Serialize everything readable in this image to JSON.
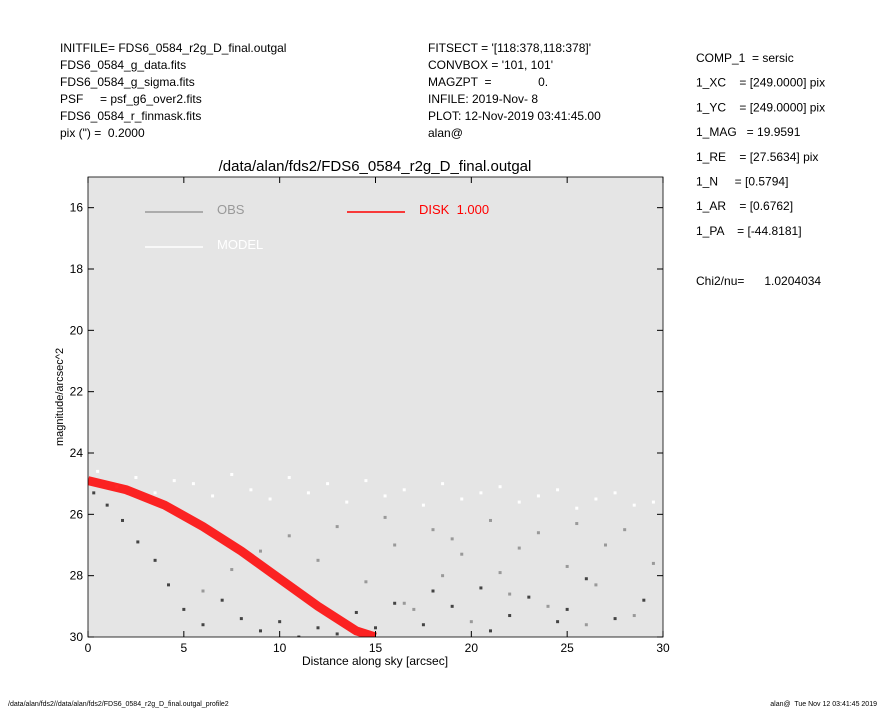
{
  "header_left": [
    "INITFILE= FDS6_0584_r2g_D_final.outgal",
    "FDS6_0584_g_data.fits",
    "FDS6_0584_g_sigma.fits",
    "PSF     = psf_g6_over2.fits",
    "FDS6_0584_r_finmask.fits",
    "pix (\") =  0.2000"
  ],
  "header_mid": [
    "FITSECT = '[118:378,118:378]'",
    "CONVBOX = '101, 101'",
    "MAGZPT  =              0.",
    "INFILE: 2019-Nov- 8",
    "PLOT: 12-Nov-2019 03:41:45.00",
    "alan@"
  ],
  "header_right": [
    "COMP_1  = sersic",
    "1_XC    = [249.0000] pix",
    "1_YC    = [249.0000] pix",
    "1_MAG   = 19.9591",
    "1_RE    = [27.5634] pix",
    "1_N     = [0.5794]",
    "1_AR    = [0.6762]",
    "1_PA    = [-44.8181]"
  ],
  "chi2": "Chi2/nu=      1.0204034",
  "footer_left": "/data/alan/fds2//data/alan/fds2/FDS6_0584_r2g_D_final.outgal_profile2",
  "footer_right": "alan@  Tue Nov 12 03:41:45 2019",
  "chart_data": {
    "type": "scatter",
    "title": "/data/alan/fds2/FDS6_0584_r2g_D_final.outgal",
    "xlabel": "Distance along sky [arcsec]",
    "ylabel": "magnitude/arcsec^2",
    "xlim": [
      0,
      30
    ],
    "xticks": [
      0,
      5,
      10,
      15,
      20,
      25,
      30
    ],
    "ylim": [
      30,
      15
    ],
    "yticks": [
      16,
      18,
      20,
      22,
      24,
      26,
      28,
      30
    ],
    "background": "#e5e5e5",
    "series": [
      {
        "name": "OBS",
        "color": "#999999",
        "mode": "points",
        "x": [
          6,
          7.5,
          9,
          10.5,
          12,
          13,
          14.5,
          15.5,
          16,
          17,
          18,
          18.5,
          19.5,
          20,
          21,
          22,
          22.5,
          23.5,
          24,
          25,
          25.5,
          26.5,
          27,
          28,
          28.5,
          29.5,
          16.5,
          19,
          21.5,
          26
        ],
        "values": [
          28.5,
          27.8,
          27.2,
          26.7,
          27.5,
          26.4,
          28.2,
          26.1,
          27.0,
          29.1,
          26.5,
          28.0,
          27.3,
          29.5,
          26.2,
          28.6,
          27.1,
          26.6,
          29.0,
          27.7,
          26.3,
          28.3,
          27.0,
          26.5,
          29.3,
          27.6,
          28.9,
          26.8,
          27.9,
          29.6
        ]
      },
      {
        "name": "MODEL",
        "color": "#ffffff",
        "mode": "points",
        "x": [
          0.5,
          1.5,
          2.5,
          3.5,
          4.5,
          5.5,
          6.5,
          7.5,
          8.5,
          9.5,
          10.5,
          11.5,
          12.5,
          13.5,
          14.5,
          15.5,
          16.5,
          17.5,
          18.5,
          19.5,
          20.5,
          21.5,
          22.5,
          23.5,
          24.5,
          25.5,
          26.5,
          27.5,
          28.5,
          29.5
        ],
        "values": [
          24.6,
          25.1,
          24.8,
          25.3,
          24.9,
          25.0,
          25.4,
          24.7,
          25.2,
          25.5,
          24.8,
          25.3,
          25.0,
          25.6,
          24.9,
          25.4,
          25.2,
          25.7,
          25.0,
          25.5,
          25.3,
          25.1,
          25.6,
          25.4,
          25.2,
          25.8,
          25.5,
          25.3,
          25.7,
          25.6
        ]
      },
      {
        "color": "#444444",
        "mode": "points",
        "x": [
          0.3,
          1,
          1.8,
          2.6,
          3.5,
          4.2,
          5,
          6,
          7,
          8,
          9,
          10,
          12,
          14,
          16,
          17.5,
          19,
          20.5,
          22,
          23,
          24.5,
          26,
          27.5,
          29,
          11,
          13,
          15,
          18,
          21,
          25
        ],
        "values": [
          25.3,
          25.7,
          26.2,
          26.9,
          27.5,
          28.3,
          29.1,
          29.6,
          28.8,
          29.4,
          29.8,
          29.5,
          29.7,
          29.2,
          28.9,
          29.6,
          29.0,
          28.4,
          29.3,
          28.7,
          29.5,
          28.1,
          29.4,
          28.8,
          30.0,
          29.9,
          29.7,
          28.5,
          29.8,
          29.1
        ]
      },
      {
        "name": "DISK  1.000",
        "color": "#ff0000",
        "mode": "line",
        "x": [
          0,
          2,
          4,
          6,
          8,
          10,
          12,
          14,
          15
        ],
        "values": [
          24.9,
          25.2,
          25.7,
          26.4,
          27.2,
          28.1,
          29.0,
          29.8,
          30
        ]
      }
    ]
  }
}
